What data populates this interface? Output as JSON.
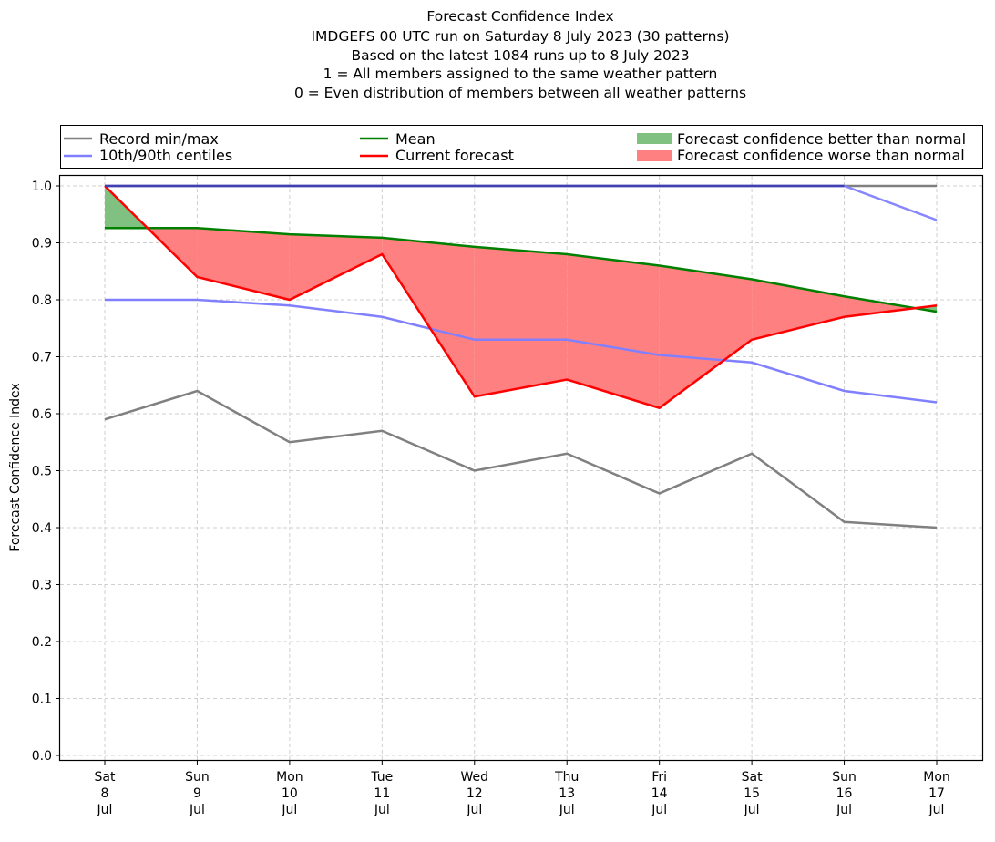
{
  "chart_data": {
    "type": "line",
    "title_lines": [
      "Forecast Confidence Index",
      "IMDGEFS 00 UTC run on Saturday 8 July 2023 (30 patterns)",
      "Based on the latest 1084 runs up to 8 July 2023",
      "1 = All members assigned to the same weather pattern",
      "0 = Even distribution of members between all weather patterns"
    ],
    "xlabel": "",
    "ylabel": "Forecast Confidence Index",
    "ylim": [
      0.0,
      1.0
    ],
    "yticks": [
      "0.0",
      "0.1",
      "0.2",
      "0.3",
      "0.4",
      "0.5",
      "0.6",
      "0.7",
      "0.8",
      "0.9",
      "1.0"
    ],
    "grid": true,
    "categories": [
      {
        "day": "Sat",
        "date": "8",
        "month": "Jul"
      },
      {
        "day": "Sun",
        "date": "9",
        "month": "Jul"
      },
      {
        "day": "Mon",
        "date": "10",
        "month": "Jul"
      },
      {
        "day": "Tue",
        "date": "11",
        "month": "Jul"
      },
      {
        "day": "Wed",
        "date": "12",
        "month": "Jul"
      },
      {
        "day": "Thu",
        "date": "13",
        "month": "Jul"
      },
      {
        "day": "Fri",
        "date": "14",
        "month": "Jul"
      },
      {
        "day": "Sat",
        "date": "15",
        "month": "Jul"
      },
      {
        "day": "Sun",
        "date": "16",
        "month": "Jul"
      },
      {
        "day": "Mon",
        "date": "17",
        "month": "Jul"
      }
    ],
    "series": [
      {
        "key": "record_max",
        "name": "Record min/max",
        "color": "#808080",
        "values": [
          1.0,
          1.0,
          1.0,
          1.0,
          1.0,
          1.0,
          1.0,
          1.0,
          1.0,
          1.0
        ]
      },
      {
        "key": "record_min",
        "name": "Record min/max",
        "color": "#808080",
        "values": [
          0.59,
          0.64,
          0.55,
          0.57,
          0.5,
          0.53,
          0.46,
          0.53,
          0.41,
          0.4
        ]
      },
      {
        "key": "p90",
        "name": "10th/90th centiles",
        "color": "#8080ff",
        "values": [
          1.0,
          1.0,
          1.0,
          1.0,
          1.0,
          1.0,
          1.0,
          1.0,
          1.0,
          0.94
        ]
      },
      {
        "key": "p10",
        "name": "10th/90th centiles",
        "color": "#8080ff",
        "values": [
          0.8,
          0.8,
          0.79,
          0.77,
          0.73,
          0.73,
          0.703,
          0.69,
          0.64,
          0.62
        ]
      },
      {
        "key": "mean",
        "name": "Mean",
        "color": "#008000",
        "values": [
          0.926,
          0.926,
          0.915,
          0.909,
          0.893,
          0.88,
          0.86,
          0.836,
          0.806,
          0.779
        ]
      },
      {
        "key": "current",
        "name": "Current forecast",
        "color": "#ff0000",
        "values": [
          1.0,
          0.84,
          0.8,
          0.88,
          0.63,
          0.66,
          0.61,
          0.73,
          0.77,
          0.79
        ]
      }
    ],
    "fills": [
      {
        "name": "Forecast confidence better than normal",
        "color": "#80c080",
        "condition": "current > mean"
      },
      {
        "name": "Forecast confidence worse than normal",
        "color": "#ff8080",
        "condition": "current < mean"
      }
    ],
    "legend": {
      "placement": "top, above plot",
      "entries": [
        {
          "label": "Record min/max",
          "type": "line",
          "color": "#808080"
        },
        {
          "label": "10th/90th centiles",
          "type": "line",
          "color": "#8080ff"
        },
        {
          "label": "Mean",
          "type": "line",
          "color": "#008000"
        },
        {
          "label": "Current forecast",
          "type": "line",
          "color": "#ff0000"
        },
        {
          "label": "Forecast confidence better than normal",
          "type": "patch",
          "color": "#80c080"
        },
        {
          "label": "Forecast confidence worse than normal",
          "type": "patch",
          "color": "#ff8080"
        }
      ]
    }
  }
}
